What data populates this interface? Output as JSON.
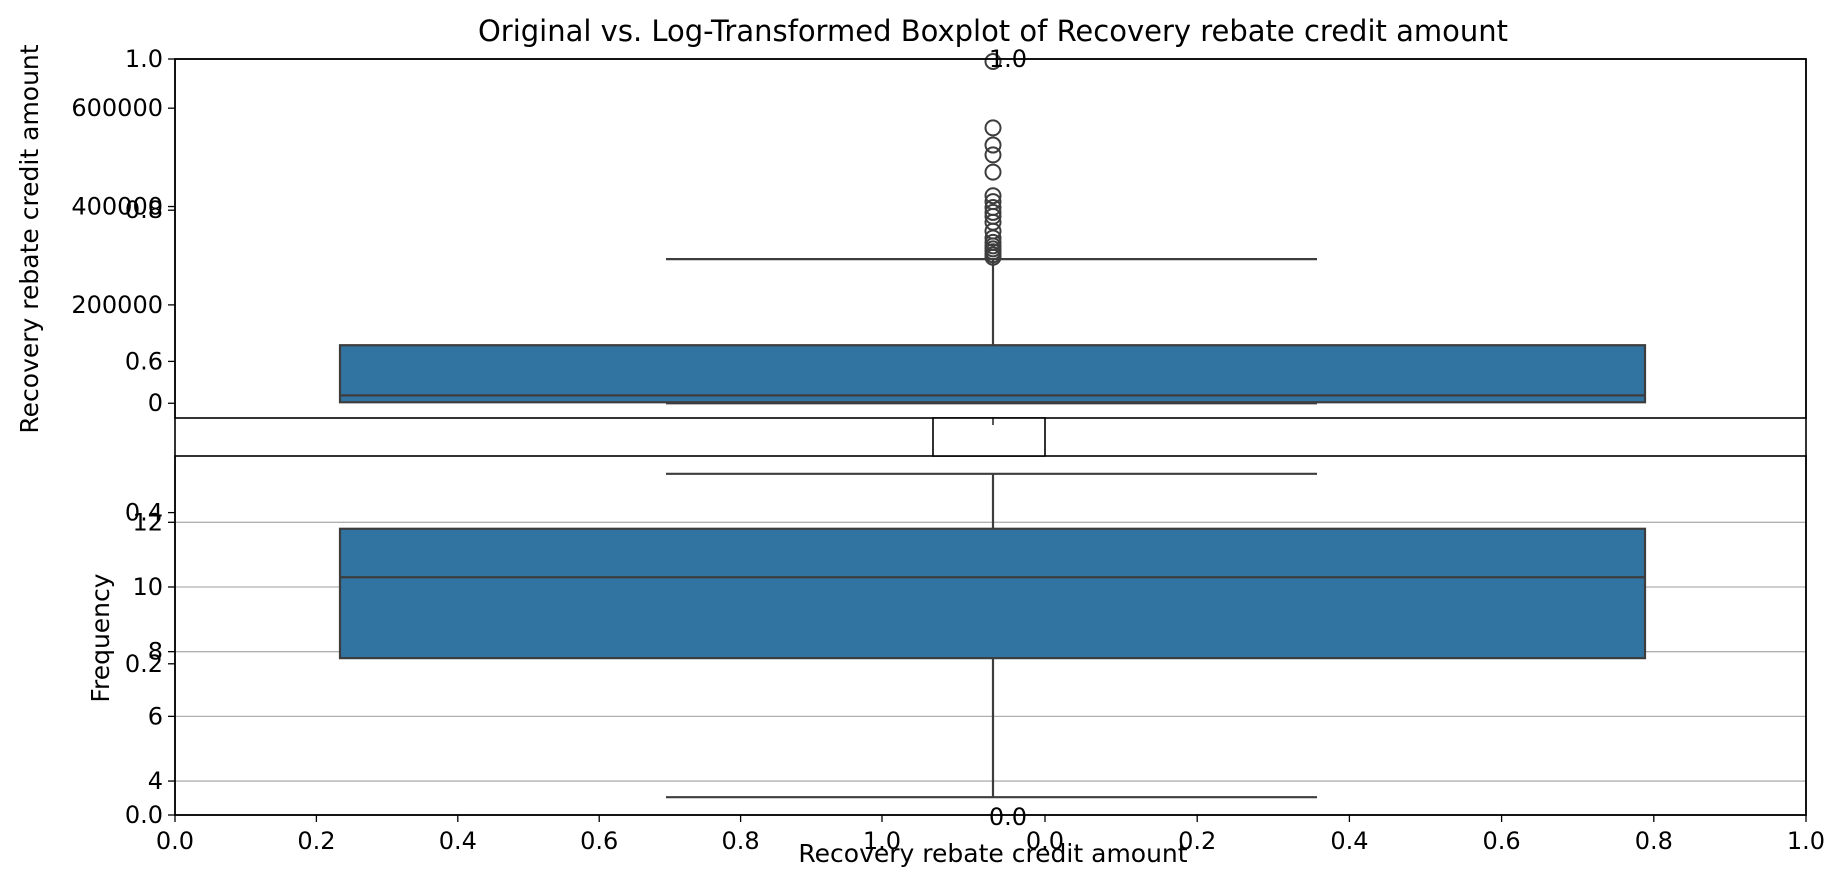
{
  "chart_data": [
    {
      "type": "axes",
      "role": "background",
      "xlim": [
        0,
        1
      ],
      "ylim": [
        0,
        1
      ],
      "x_ticks": [
        "0.0",
        "0.2",
        "0.4",
        "0.6",
        "0.8",
        "1.0"
      ],
      "y_ticks": [
        "0.0",
        "0.2",
        "0.4",
        "0.6",
        "0.8",
        "1.0"
      ],
      "title": "Original vs. Log-Transformed Boxplot of Recovery rebate credit amount"
    },
    {
      "type": "boxplot",
      "role": "original",
      "ylabel": "Recovery rebate credit amount",
      "ylim": [
        -30000,
        700000
      ],
      "y_ticks": [
        0,
        200000,
        400000,
        600000
      ],
      "y_tick_labels": [
        "0",
        "200000",
        "400000",
        "600000"
      ],
      "box": {
        "q1": 2000,
        "median": 16000,
        "q3": 118000,
        "whisker_low": 0,
        "whisker_high": 293000
      },
      "outliers": [
        297000,
        302000,
        308000,
        314000,
        320000,
        327000,
        336000,
        350000,
        368000,
        380000,
        388000,
        398000,
        410000,
        422000,
        470000,
        505000,
        525000,
        560000,
        695000
      ],
      "color": "#3274a1"
    },
    {
      "type": "axes",
      "role": "inset",
      "xlim": [
        0,
        1
      ],
      "ylim": [
        0,
        1
      ],
      "x_ticks": [
        "0.0"
      ],
      "y_ticks": [
        "1.0"
      ]
    },
    {
      "type": "boxplot",
      "role": "log-transformed",
      "xlabel": "Recovery rebate credit amount",
      "ylabel": "Frequency",
      "ylim": [
        2.95,
        14.05
      ],
      "y_ticks": [
        4,
        6,
        8,
        10,
        12
      ],
      "y_tick_labels": [
        "4",
        "6",
        "8",
        "10",
        "12"
      ],
      "grid": true,
      "box": {
        "q1": 7.8,
        "median": 10.3,
        "q3": 11.8,
        "whisker_low": 3.5,
        "whisker_high": 13.5
      },
      "color": "#3274a1"
    },
    {
      "type": "axes",
      "role": "second-x",
      "xlim": [
        0,
        1
      ],
      "x_ticks": [
        "0.0",
        "0.2",
        "0.4",
        "0.6",
        "0.8",
        "1.0"
      ]
    }
  ]
}
